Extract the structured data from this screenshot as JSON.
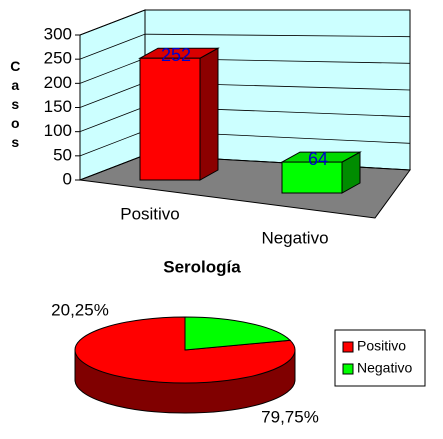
{
  "chart_data": [
    {
      "type": "bar",
      "categories": [
        "Positivo",
        "Negativo"
      ],
      "values": [
        252,
        64
      ],
      "colors": [
        "#ff0000",
        "#00ff00"
      ],
      "label_color": "#0000cc",
      "ylabel": "Casos",
      "xlabel": "Serología",
      "ylim": [
        0,
        300
      ],
      "yticks": [
        0,
        50,
        100,
        150,
        200,
        250,
        300
      ],
      "grid": true
    },
    {
      "type": "pie",
      "categories": [
        "Positivo",
        "Negativo"
      ],
      "values": [
        79.75,
        20.25
      ],
      "value_labels": [
        "79,75%",
        "20,25%"
      ],
      "colors": [
        "#ff0000",
        "#00ff00"
      ],
      "legend": "right"
    }
  ]
}
